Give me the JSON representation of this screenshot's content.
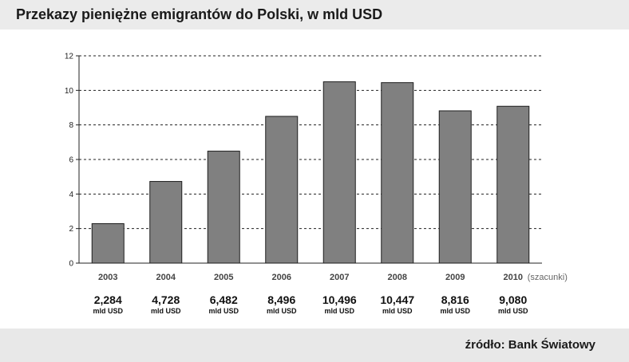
{
  "header": {
    "title": "Przekazy pieniężne emigrantów do Polski, w mld USD"
  },
  "footer": {
    "source": "źródło: Bank Światowy"
  },
  "colors": {
    "bar": "#808080",
    "bar_stroke": "#1e1e1e",
    "title_bg": "#ebebeb",
    "footer_bg": "#e8e8e8"
  },
  "chart_data": {
    "type": "bar",
    "title": "Przekazy pieniężne emigrantów do Polski, w mld USD",
    "xlabel": "",
    "ylabel": "",
    "ylim": [
      0,
      12
    ],
    "yticks": [
      "0",
      "2",
      "4",
      "6",
      "8",
      "10",
      "12"
    ],
    "grid": true,
    "categories": [
      "2003",
      "2004",
      "2005",
      "2006",
      "2007",
      "2008",
      "2009",
      "2010"
    ],
    "category_note": {
      "index": 7,
      "text": "(szacunki)"
    },
    "values": [
      2.284,
      4.728,
      6.482,
      8.496,
      10.496,
      10.447,
      8.816,
      9.08
    ],
    "value_labels": [
      "2,284",
      "4,728",
      "6,482",
      "8,496",
      "10,496",
      "10,447",
      "8,816",
      "9,080"
    ],
    "unit_label": "mld USD"
  }
}
